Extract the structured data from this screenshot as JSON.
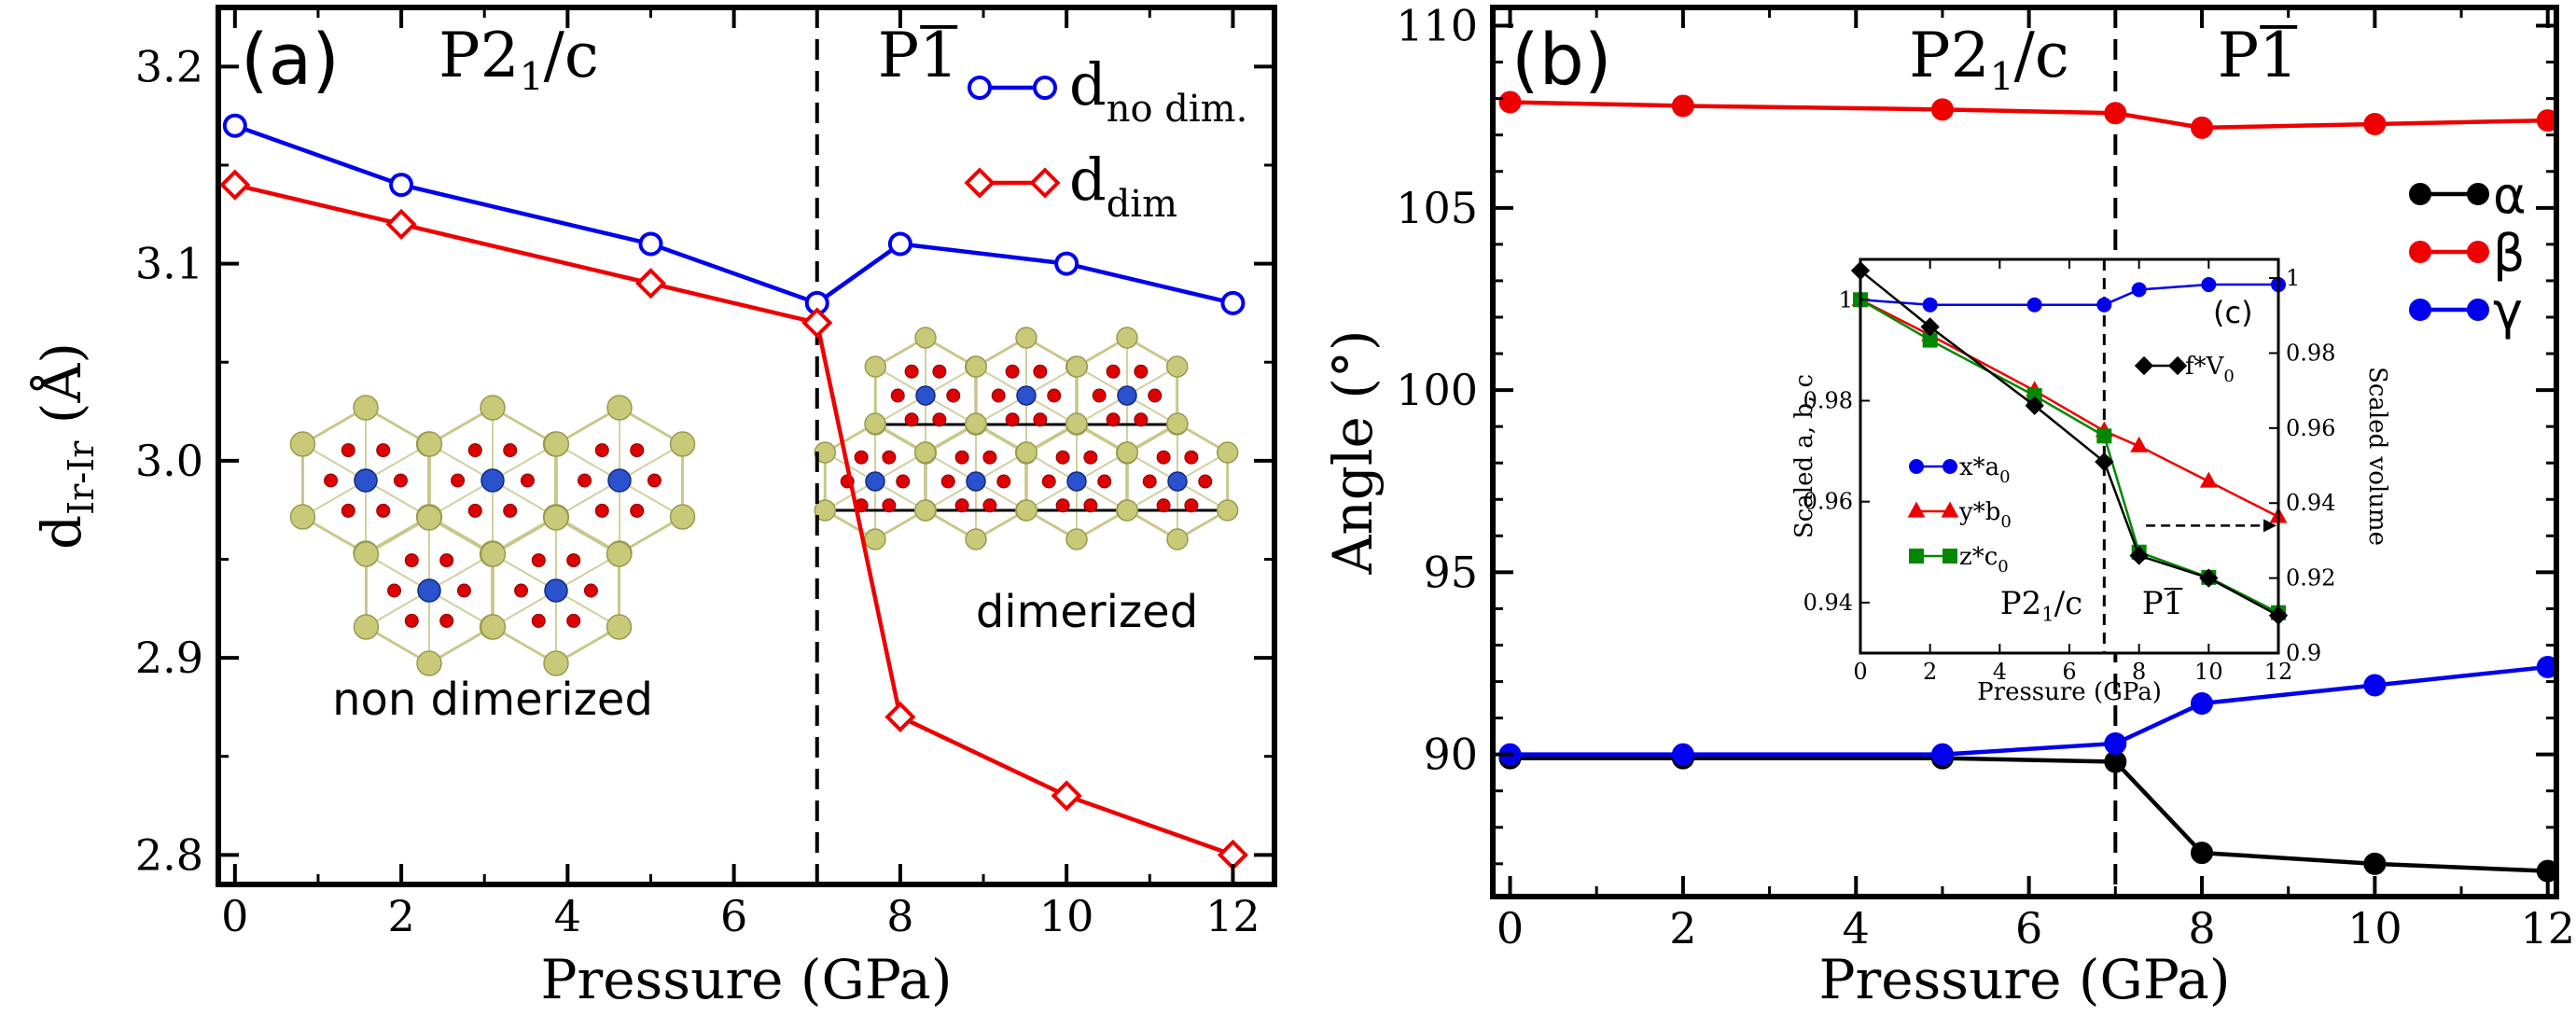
{
  "chart_data": [
    {
      "panel": "a",
      "type": "line",
      "panel_label": "(a)",
      "xlabel": "Pressure (GPa)",
      "ylabel": "d",
      "ylabel_sub": "Ir-Ir",
      "ylabel_unit": " (Å)",
      "xlim": [
        -0.2,
        12.5
      ],
      "ylim": [
        2.785,
        3.23
      ],
      "xticks": [
        0,
        2,
        4,
        6,
        8,
        10,
        12
      ],
      "yticks": [
        2.8,
        2.9,
        3.0,
        3.1,
        3.2
      ],
      "ytick_labels": [
        "2.8",
        "2.9",
        "3.0",
        "3.1",
        "3.2"
      ],
      "transition_x": 7,
      "phase_left": {
        "main": "P2",
        "sub": "1",
        "rest": "/c"
      },
      "phase_right": {
        "main": "P",
        "bar": "1"
      },
      "series": [
        {
          "name": "d",
          "sub": "no dim.",
          "color": "#0000ee",
          "marker": "circle",
          "x": [
            0,
            2,
            5,
            7,
            8,
            10,
            12
          ],
          "y": [
            3.17,
            3.14,
            3.11,
            3.08,
            3.11,
            3.1,
            3.08
          ]
        },
        {
          "name": "d",
          "sub": "dim",
          "color": "#ee0000",
          "marker": "diamond",
          "x": [
            0,
            2,
            5,
            7,
            8,
            10,
            12
          ],
          "y": [
            3.14,
            3.12,
            3.09,
            3.07,
            2.87,
            2.83,
            2.8
          ]
        }
      ],
      "annotations": {
        "left_structure": "non dimerized",
        "right_structure": "dimerized"
      }
    },
    {
      "panel": "b",
      "type": "line",
      "panel_label": "(b)",
      "xlabel": "Pressure (GPa)",
      "ylabel": "Angle (°)",
      "xlim": [
        -0.2,
        12.1
      ],
      "ylim": [
        86.1,
        110.5
      ],
      "xticks": [
        0,
        2,
        4,
        6,
        8,
        10,
        12
      ],
      "yticks": [
        90,
        95,
        100,
        105,
        110
      ],
      "ytick_labels": [
        "90",
        "95",
        "100",
        "105",
        "110"
      ],
      "transition_x": 7,
      "phase_left": {
        "main": "P2",
        "sub": "1",
        "rest": "/c"
      },
      "phase_right": {
        "main": "P",
        "bar": "1"
      },
      "series": [
        {
          "name": "α",
          "color": "#000000",
          "x": [
            0,
            2,
            5,
            7,
            8,
            10,
            12
          ],
          "y": [
            89.9,
            89.9,
            89.9,
            89.8,
            87.3,
            87.0,
            86.8
          ]
        },
        {
          "name": "β",
          "color": "#ee0000",
          "x": [
            0,
            2,
            5,
            7,
            8,
            10,
            12
          ],
          "y": [
            107.9,
            107.8,
            107.7,
            107.6,
            107.2,
            107.3,
            107.4
          ]
        },
        {
          "name": "γ",
          "color": "#0000ee",
          "x": [
            0,
            2,
            5,
            7,
            8,
            10,
            12
          ],
          "y": [
            90.0,
            90.0,
            90.0,
            90.3,
            91.4,
            91.9,
            92.4
          ]
        }
      ]
    },
    {
      "panel": "c",
      "type": "line",
      "panel_label": "(c)",
      "xlabel": "Pressure (GPa)",
      "ylabel_left": "Scaled a, b, c",
      "ylabel_right": "Scaled volume",
      "xlim": [
        0,
        12
      ],
      "ylim_left": [
        0.93,
        1.008
      ],
      "ylim_right": [
        0.9,
        1.005
      ],
      "xticks": [
        0,
        2,
        4,
        6,
        8,
        10,
        12
      ],
      "yticks_left": [
        0.94,
        0.96,
        0.98,
        1.0
      ],
      "ytick_labels_left": [
        "0.94",
        "0.96",
        "0.98",
        "1"
      ],
      "yticks_right": [
        0.9,
        0.92,
        0.94,
        0.96,
        0.98,
        1.0
      ],
      "ytick_labels_right": [
        "0.9",
        "0.92",
        "0.94",
        "0.96",
        "0.98",
        "1"
      ],
      "transition_x": 7,
      "phase_left": {
        "main": "P2",
        "sub": "1",
        "rest": "/c"
      },
      "phase_right": {
        "main": "P",
        "bar": "1"
      },
      "series": [
        {
          "name": "x*a",
          "sub": "0",
          "color": "#0000ee",
          "marker": "circle",
          "axis": "left",
          "x": [
            0,
            2,
            5,
            7,
            8,
            10,
            12
          ],
          "y": [
            1.0,
            0.999,
            0.999,
            0.999,
            1.002,
            1.003,
            1.003
          ]
        },
        {
          "name": "y*b",
          "sub": "0",
          "color": "#ee0000",
          "marker": "triangle",
          "axis": "left",
          "x": [
            0,
            2,
            5,
            7,
            8,
            10,
            12
          ],
          "y": [
            1.0,
            0.993,
            0.982,
            0.974,
            0.971,
            0.964,
            0.957
          ]
        },
        {
          "name": "z*c",
          "sub": "0",
          "color": "#008800",
          "marker": "square",
          "axis": "left",
          "x": [
            0,
            2,
            5,
            7,
            8,
            10,
            12
          ],
          "y": [
            1.0,
            0.992,
            0.981,
            0.973,
            0.95,
            0.945,
            0.938
          ]
        },
        {
          "name": "f*V",
          "sub": "0",
          "color": "#000000",
          "marker": "diamond",
          "axis": "right",
          "x": [
            0,
            2,
            5,
            7,
            8,
            10,
            12
          ],
          "y": [
            1.002,
            0.987,
            0.966,
            0.951,
            0.926,
            0.92,
            0.91
          ]
        }
      ]
    }
  ]
}
